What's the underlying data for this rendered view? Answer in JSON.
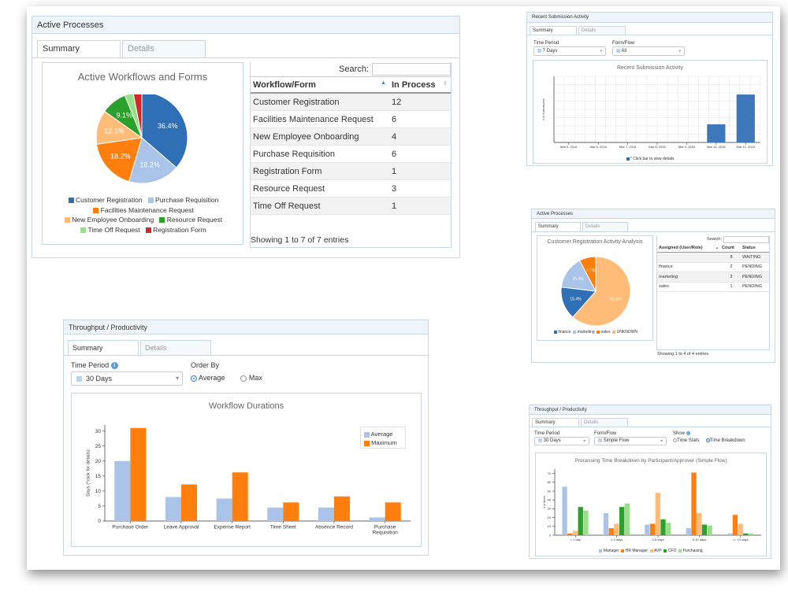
{
  "colors": {
    "blue": "#2f6fb5",
    "lightblue": "#a9c4e8",
    "orange": "#ff7f0e",
    "lightorange": "#ffbb78",
    "green": "#2ca02c",
    "lightgreen": "#98df8a",
    "red": "#d62728"
  },
  "w1": {
    "title": "Active Processes",
    "tabs": [
      "Summary",
      "Details"
    ],
    "search_label": "Search:",
    "col_workflow": "Workflow/Form",
    "col_inprocess": "In Process",
    "rows": [
      {
        "name": "Customer Registration",
        "count": "12"
      },
      {
        "name": "Facilities Maintenance Request",
        "count": "6"
      },
      {
        "name": "New Employee Onboarding",
        "count": "4"
      },
      {
        "name": "Purchase Requisition",
        "count": "6"
      },
      {
        "name": "Registration Form",
        "count": "1"
      },
      {
        "name": "Resource Request",
        "count": "3"
      },
      {
        "name": "Time Off Request",
        "count": "1"
      }
    ],
    "footer": "Showing 1 to 7 of 7 entries",
    "legend": [
      "Customer Registration",
      "Purchase Requisition",
      "Facilities Maintenance Request",
      "New Employee Onboarding",
      "Resource Request",
      "Time Off Request",
      "Registration Form"
    ]
  },
  "w2": {
    "title": "Recent Submission Activity",
    "tabs": [
      "Summary",
      "Details"
    ],
    "time_period_label": "Time Period",
    "time_period_value": "7 Days",
    "form_flow_label": "Form/Flow",
    "form_flow_value": "All",
    "legend": "* Click bar to view details"
  },
  "w3": {
    "title": "Active Processes",
    "tabs": [
      "Summary",
      "Details"
    ],
    "search_label": "Search:",
    "col_assigned": "Assigned (User/Role)",
    "col_count": "Count",
    "col_status": "Status",
    "rows": [
      {
        "user": "",
        "count": "8",
        "status": "WAITING"
      },
      {
        "user": "finance",
        "count": "2",
        "status": "PENDING"
      },
      {
        "user": "marketing",
        "count": "2",
        "status": "PENDING"
      },
      {
        "user": "sales",
        "count": "1",
        "status": "PENDING"
      }
    ],
    "footer": "Showing 1 to 4 of 4 entries",
    "legend": [
      "finance",
      "marketing",
      "sales",
      "UNKNOWN"
    ]
  },
  "w4": {
    "title": "Throughput / Productivity",
    "tabs": [
      "Summary",
      "Details"
    ],
    "time_period_label": "Time Period",
    "time_period_value": "30 Days",
    "order_by_label": "Order By",
    "opt_average": "Average",
    "opt_max": "Max",
    "legend": [
      "Average",
      "Maximum"
    ]
  },
  "w5": {
    "title": "Throughput / Productivity",
    "tabs": [
      "Summary",
      "Details"
    ],
    "time_period_label": "Time Period",
    "time_period_value": "30 Days",
    "form_flow_label": "Form/Flow",
    "form_flow_value": "Simple Flow",
    "show_label": "Show",
    "opt_stats": "Time Stats",
    "opt_breakdown": "Time Breakdown",
    "legend": [
      "Manager",
      "HR Manager",
      "AVP",
      "CFO",
      "Purchasing"
    ]
  },
  "chart_data": [
    {
      "type": "pie",
      "title": "Active Workflows and Forms",
      "categories": [
        "Customer Registration",
        "Purchase Requisition",
        "Facilities Maintenance Request",
        "New Employee Onboarding",
        "Resource Request",
        "Time Off Request",
        "Registration Form"
      ],
      "values": [
        12,
        6,
        6,
        4,
        3,
        1,
        1
      ],
      "labels": [
        "36.4%",
        "18.2%",
        "18.2%",
        "12.1%",
        "9.1%",
        "",
        ""
      ],
      "colors": [
        "#2f6fb5",
        "#a9c4e8",
        "#ff7f0e",
        "#ffbb78",
        "#2ca02c",
        "#98df8a",
        "#d62728"
      ]
    },
    {
      "type": "bar",
      "title": "Recent Submission Activity",
      "categories": [
        "Mar 5, 2016",
        "Mar 6, 2016",
        "Mar 7, 2016",
        "Mar 8, 2016",
        "Mar 9, 2016",
        "Mar 10, 2016",
        "Mar 11, 2016"
      ],
      "values": [
        0,
        0,
        0,
        0,
        0,
        11,
        29
      ],
      "ylabel": "# of Submissions",
      "ylim": [
        0,
        40
      ]
    },
    {
      "type": "pie",
      "title": "Customer Registration Activity Analysis",
      "categories": [
        "UNKNOWN",
        "finance",
        "marketing",
        "sales"
      ],
      "values": [
        8,
        2,
        2,
        1
      ],
      "labels": [
        "61.5%",
        "15.4%",
        "15.4%",
        "7.7%"
      ],
      "colors": [
        "#ffbb78",
        "#2f6fb5",
        "#a9c4e8",
        "#ff7f0e"
      ]
    },
    {
      "type": "bar",
      "title": "Workflow Durations",
      "categories": [
        "Purchase Order",
        "Leave Approval",
        "Expense Report",
        "Time Sheet",
        "Absence Record",
        "Purchase Requisition"
      ],
      "series": [
        {
          "name": "Average",
          "values": [
            20,
            8,
            7.5,
            4.5,
            4.5,
            1.2
          ],
          "color": "#a9c4e8"
        },
        {
          "name": "Maximum",
          "values": [
            31,
            12.2,
            16.2,
            6.2,
            8.2,
            6.2
          ],
          "color": "#ff7f0e"
        }
      ],
      "ylabel": "Days (*click for details)",
      "ylim": [
        0,
        32
      ],
      "yticks": [
        0,
        5,
        10,
        15,
        20,
        25,
        30
      ]
    },
    {
      "type": "bar",
      "title": "Processing Time Breakdown by Participant/Approver (Simple Flow)",
      "categories": [
        "< 1 day",
        "1-3 days",
        "3-5 days",
        "5-10 days",
        ">= 10 days"
      ],
      "series": [
        {
          "name": "Manager",
          "values": [
            55,
            25,
            12,
            8,
            2
          ],
          "color": "#a9c4e8"
        },
        {
          "name": "HR Manager",
          "values": [
            2,
            8,
            13,
            71,
            23
          ],
          "color": "#ff7f0e"
        },
        {
          "name": "AVP",
          "values": [
            5,
            13,
            48,
            25,
            13
          ],
          "color": "#ffbb78"
        },
        {
          "name": "CFO",
          "values": [
            32,
            32,
            18,
            12,
            2
          ],
          "color": "#2ca02c"
        },
        {
          "name": "Purchasing",
          "values": [
            28,
            36,
            14,
            11,
            2
          ],
          "color": "#98df8a"
        }
      ],
      "ylabel": "# of Items",
      "ylim": [
        0,
        75
      ],
      "yticks": [
        0,
        10,
        20,
        30,
        40,
        50,
        60,
        70
      ]
    }
  ]
}
